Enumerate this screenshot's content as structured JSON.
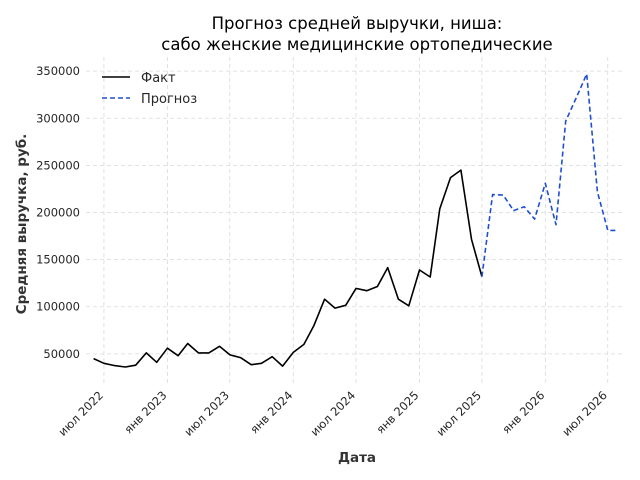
{
  "chart_data": {
    "type": "line",
    "title": [
      "Прогноз средней выручки, ниша:",
      "сабо женские медицинские ортопедические"
    ],
    "xlabel": "Дата",
    "ylabel": "Средняя выручка, руб.",
    "x_ticks": [
      "июл 2022",
      "янв 2023",
      "июл 2023",
      "янв 2024",
      "июл 2024",
      "янв 2025",
      "июл 2025",
      "янв 2026",
      "июл 2026"
    ],
    "y_ticks": [
      50000,
      100000,
      150000,
      200000,
      250000,
      300000,
      350000
    ],
    "y_tick_labels": [
      "50000",
      "100000",
      "150000",
      "200000",
      "250000",
      "300000",
      "350000"
    ],
    "xlim": [
      "2022-05-10",
      "2026-08-20"
    ],
    "ylim": [
      18000,
      365000
    ],
    "grid": true,
    "legend_position": "top-left",
    "series": [
      {
        "name": "Факт",
        "style": "solid",
        "color": "#000000",
        "x": [
          "2022-06-01",
          "2022-07-01",
          "2022-08-01",
          "2022-09-01",
          "2022-10-01",
          "2022-11-01",
          "2022-12-01",
          "2023-01-01",
          "2023-02-01",
          "2023-03-01",
          "2023-04-01",
          "2023-05-01",
          "2023-06-01",
          "2023-07-01",
          "2023-08-01",
          "2023-09-01",
          "2023-10-01",
          "2023-11-01",
          "2023-12-01",
          "2024-01-01",
          "2024-02-01",
          "2024-03-01",
          "2024-04-01",
          "2024-05-01",
          "2024-06-01",
          "2024-07-01",
          "2024-08-01",
          "2024-09-01",
          "2024-10-01",
          "2024-11-01",
          "2024-12-01",
          "2025-01-01",
          "2025-02-01",
          "2025-03-01",
          "2025-04-01",
          "2025-05-01",
          "2025-06-01",
          "2025-07-01"
        ],
        "values": [
          45000,
          40000,
          37500,
          36000,
          38000,
          51000,
          41000,
          56000,
          48000,
          61000,
          51000,
          51000,
          58000,
          49000,
          46000,
          38500,
          40000,
          47000,
          37000,
          51500,
          60000,
          80000,
          108000,
          98500,
          101500,
          119500,
          117000,
          121500,
          141500,
          108000,
          101000,
          139000,
          131500,
          204000,
          237000,
          245000,
          171500,
          132000
        ]
      },
      {
        "name": "Прогноз",
        "style": "dashed",
        "color": "#1f4fd1",
        "x": [
          "2025-07-01",
          "2025-08-01",
          "2025-09-01",
          "2025-10-01",
          "2025-11-01",
          "2025-12-01",
          "2026-01-01",
          "2026-02-01",
          "2026-03-01",
          "2026-04-01",
          "2026-05-01",
          "2026-06-01",
          "2026-07-01",
          "2026-08-01"
        ],
        "values": [
          132000,
          219000,
          218500,
          202000,
          206000,
          193000,
          231000,
          187000,
          297000,
          322000,
          347000,
          222000,
          181000,
          181000
        ]
      }
    ]
  }
}
